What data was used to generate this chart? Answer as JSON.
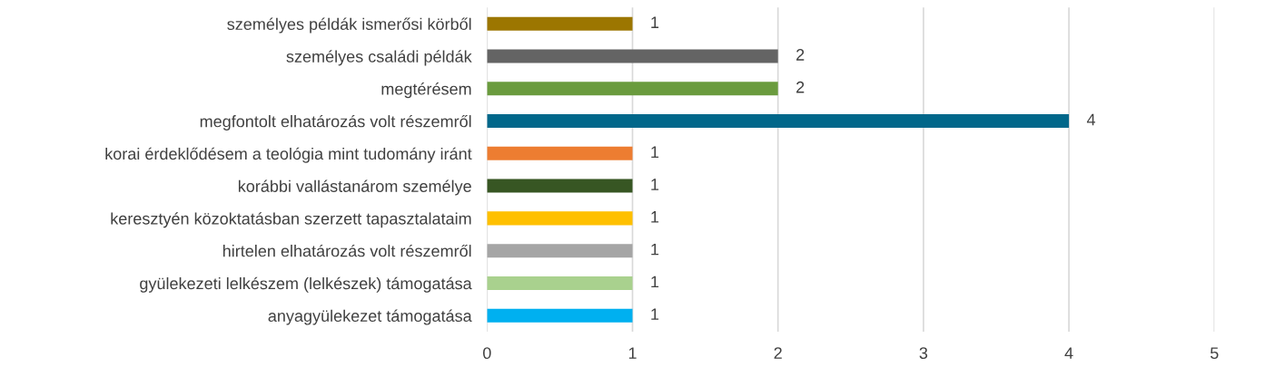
{
  "chart_data": {
    "type": "bar",
    "orientation": "horizontal",
    "categories": [
      "személyes példák ismerősi körből",
      "személyes családi példák",
      "megtérésem",
      "megfontolt elhatározás volt részemről",
      "korai érdeklődésem a teológia mint tudomány iránt",
      "korábbi vallástanárom személye",
      "keresztyén közoktatásban szerzett tapasztalataim",
      "hirtelen elhatározás volt részemről",
      "gyülekezeti lelkészem (lelkészek) támogatása",
      "anyagyülekezet támogatása"
    ],
    "values": [
      1,
      2,
      2,
      4,
      1,
      1,
      1,
      1,
      1,
      1
    ],
    "colors": [
      "#9c7600",
      "#646464",
      "#6a9b3e",
      "#00678a",
      "#ed7d31",
      "#375623",
      "#ffc000",
      "#a5a5a5",
      "#a9d18e",
      "#00b0f0"
    ],
    "xlim": [
      0,
      5
    ],
    "xticks": [
      0,
      1,
      2,
      3,
      4,
      5
    ],
    "grid": "x",
    "data_labels": true
  }
}
